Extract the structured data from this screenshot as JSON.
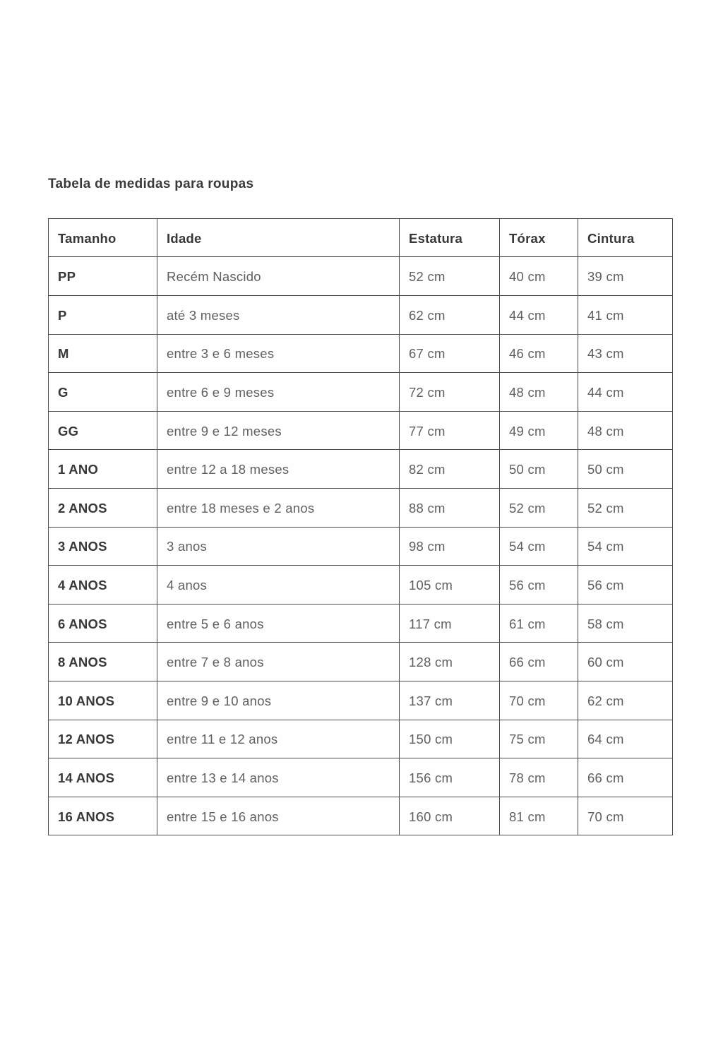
{
  "page": {
    "title": "Tabela de medidas para roupas"
  },
  "table": {
    "columns": {
      "tamanho": "Tamanho",
      "idade": "Idade",
      "estatura": "Estatura",
      "torax": "Tórax",
      "cintura": "Cintura"
    },
    "rows": [
      {
        "tamanho": "PP",
        "idade": "Recém Nascido",
        "estatura": "52 cm",
        "torax": "40 cm",
        "cintura": "39 cm"
      },
      {
        "tamanho": "P",
        "idade": "até 3 meses",
        "estatura": "62 cm",
        "torax": "44 cm",
        "cintura": "41 cm"
      },
      {
        "tamanho": "M",
        "idade": "entre 3 e 6 meses",
        "estatura": "67 cm",
        "torax": "46 cm",
        "cintura": "43 cm"
      },
      {
        "tamanho": "G",
        "idade": "entre 6 e 9 meses",
        "estatura": "72 cm",
        "torax": "48 cm",
        "cintura": "44 cm"
      },
      {
        "tamanho": "GG",
        "idade": "entre 9 e 12 meses",
        "estatura": "77 cm",
        "torax": "49 cm",
        "cintura": "48 cm"
      },
      {
        "tamanho": "1 ANO",
        "idade": "entre 12 a 18 meses",
        "estatura": "82 cm",
        "torax": "50 cm",
        "cintura": "50 cm"
      },
      {
        "tamanho": "2 ANOS",
        "idade": "entre 18 meses e 2 anos",
        "estatura": "88 cm",
        "torax": "52 cm",
        "cintura": "52 cm"
      },
      {
        "tamanho": "3 ANOS",
        "idade": "3 anos",
        "estatura": "98 cm",
        "torax": "54 cm",
        "cintura": "54 cm"
      },
      {
        "tamanho": "4 ANOS",
        "idade": "4 anos",
        "estatura": "105 cm",
        "torax": "56 cm",
        "cintura": "56 cm"
      },
      {
        "tamanho": "6 ANOS",
        "idade": "entre 5 e 6 anos",
        "estatura": "117 cm",
        "torax": "61 cm",
        "cintura": "58 cm"
      },
      {
        "tamanho": "8 ANOS",
        "idade": "entre 7 e 8 anos",
        "estatura": "128 cm",
        "torax": "66 cm",
        "cintura": "60 cm"
      },
      {
        "tamanho": "10 ANOS",
        "idade": "entre 9 e 10 anos",
        "estatura": "137 cm",
        "torax": "70 cm",
        "cintura": "62 cm"
      },
      {
        "tamanho": "12 ANOS",
        "idade": "entre 11 e 12 anos",
        "estatura": "150 cm",
        "torax": "75 cm",
        "cintura": "64 cm"
      },
      {
        "tamanho": "14 ANOS",
        "idade": "entre 13 e 14 anos",
        "estatura": "156 cm",
        "torax": "78 cm",
        "cintura": "66 cm"
      },
      {
        "tamanho": "16 ANOS",
        "idade": "entre 15 e 16 anos",
        "estatura": "160 cm",
        "torax": "81 cm",
        "cintura": "70 cm"
      }
    ]
  },
  "colors": {
    "background": "#fefefe",
    "heading_text": "#3a3a3a",
    "cell_text": "#606060",
    "border": "#4b4b4b"
  }
}
